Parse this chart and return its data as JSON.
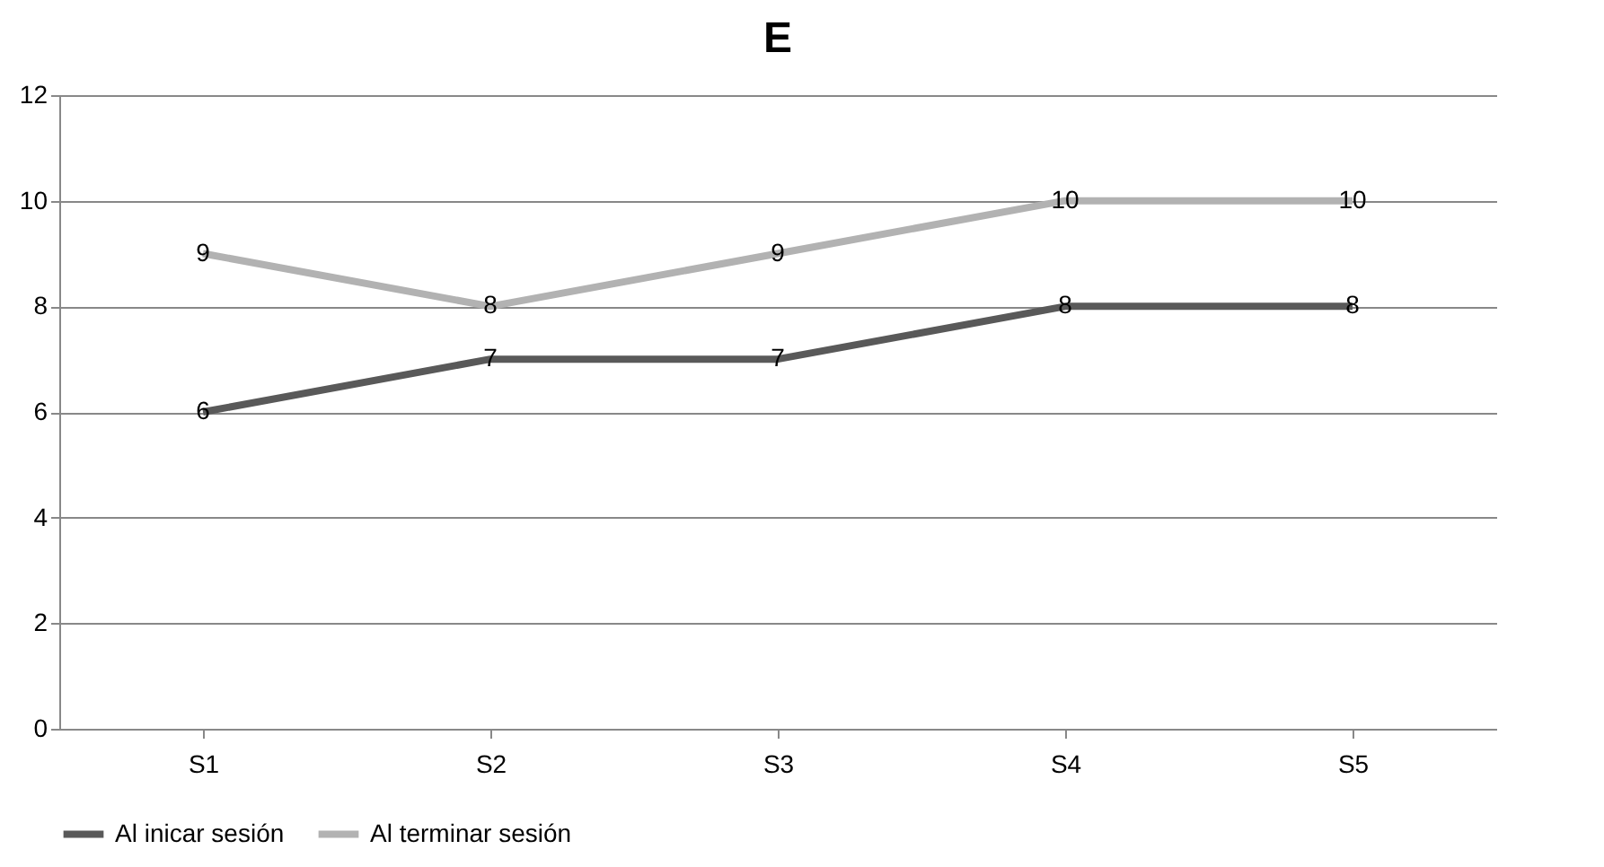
{
  "chart_data": {
    "type": "line",
    "title": "E",
    "categories": [
      "S1",
      "S2",
      "S3",
      "S4",
      "S5"
    ],
    "series": [
      {
        "name": "Al inicar sesión",
        "color": "#595959",
        "values": [
          6,
          7,
          7,
          8,
          8
        ]
      },
      {
        "name": "Al terminar sesión",
        "color": "#b2b2b2",
        "values": [
          9,
          8,
          9,
          10,
          10
        ]
      }
    ],
    "ylim": [
      0,
      12
    ],
    "yticks": [
      0,
      2,
      4,
      6,
      8,
      10,
      12
    ],
    "grid": "y",
    "legend": "bottom",
    "data_labels": true,
    "marker": "none",
    "line_style": "solid"
  }
}
